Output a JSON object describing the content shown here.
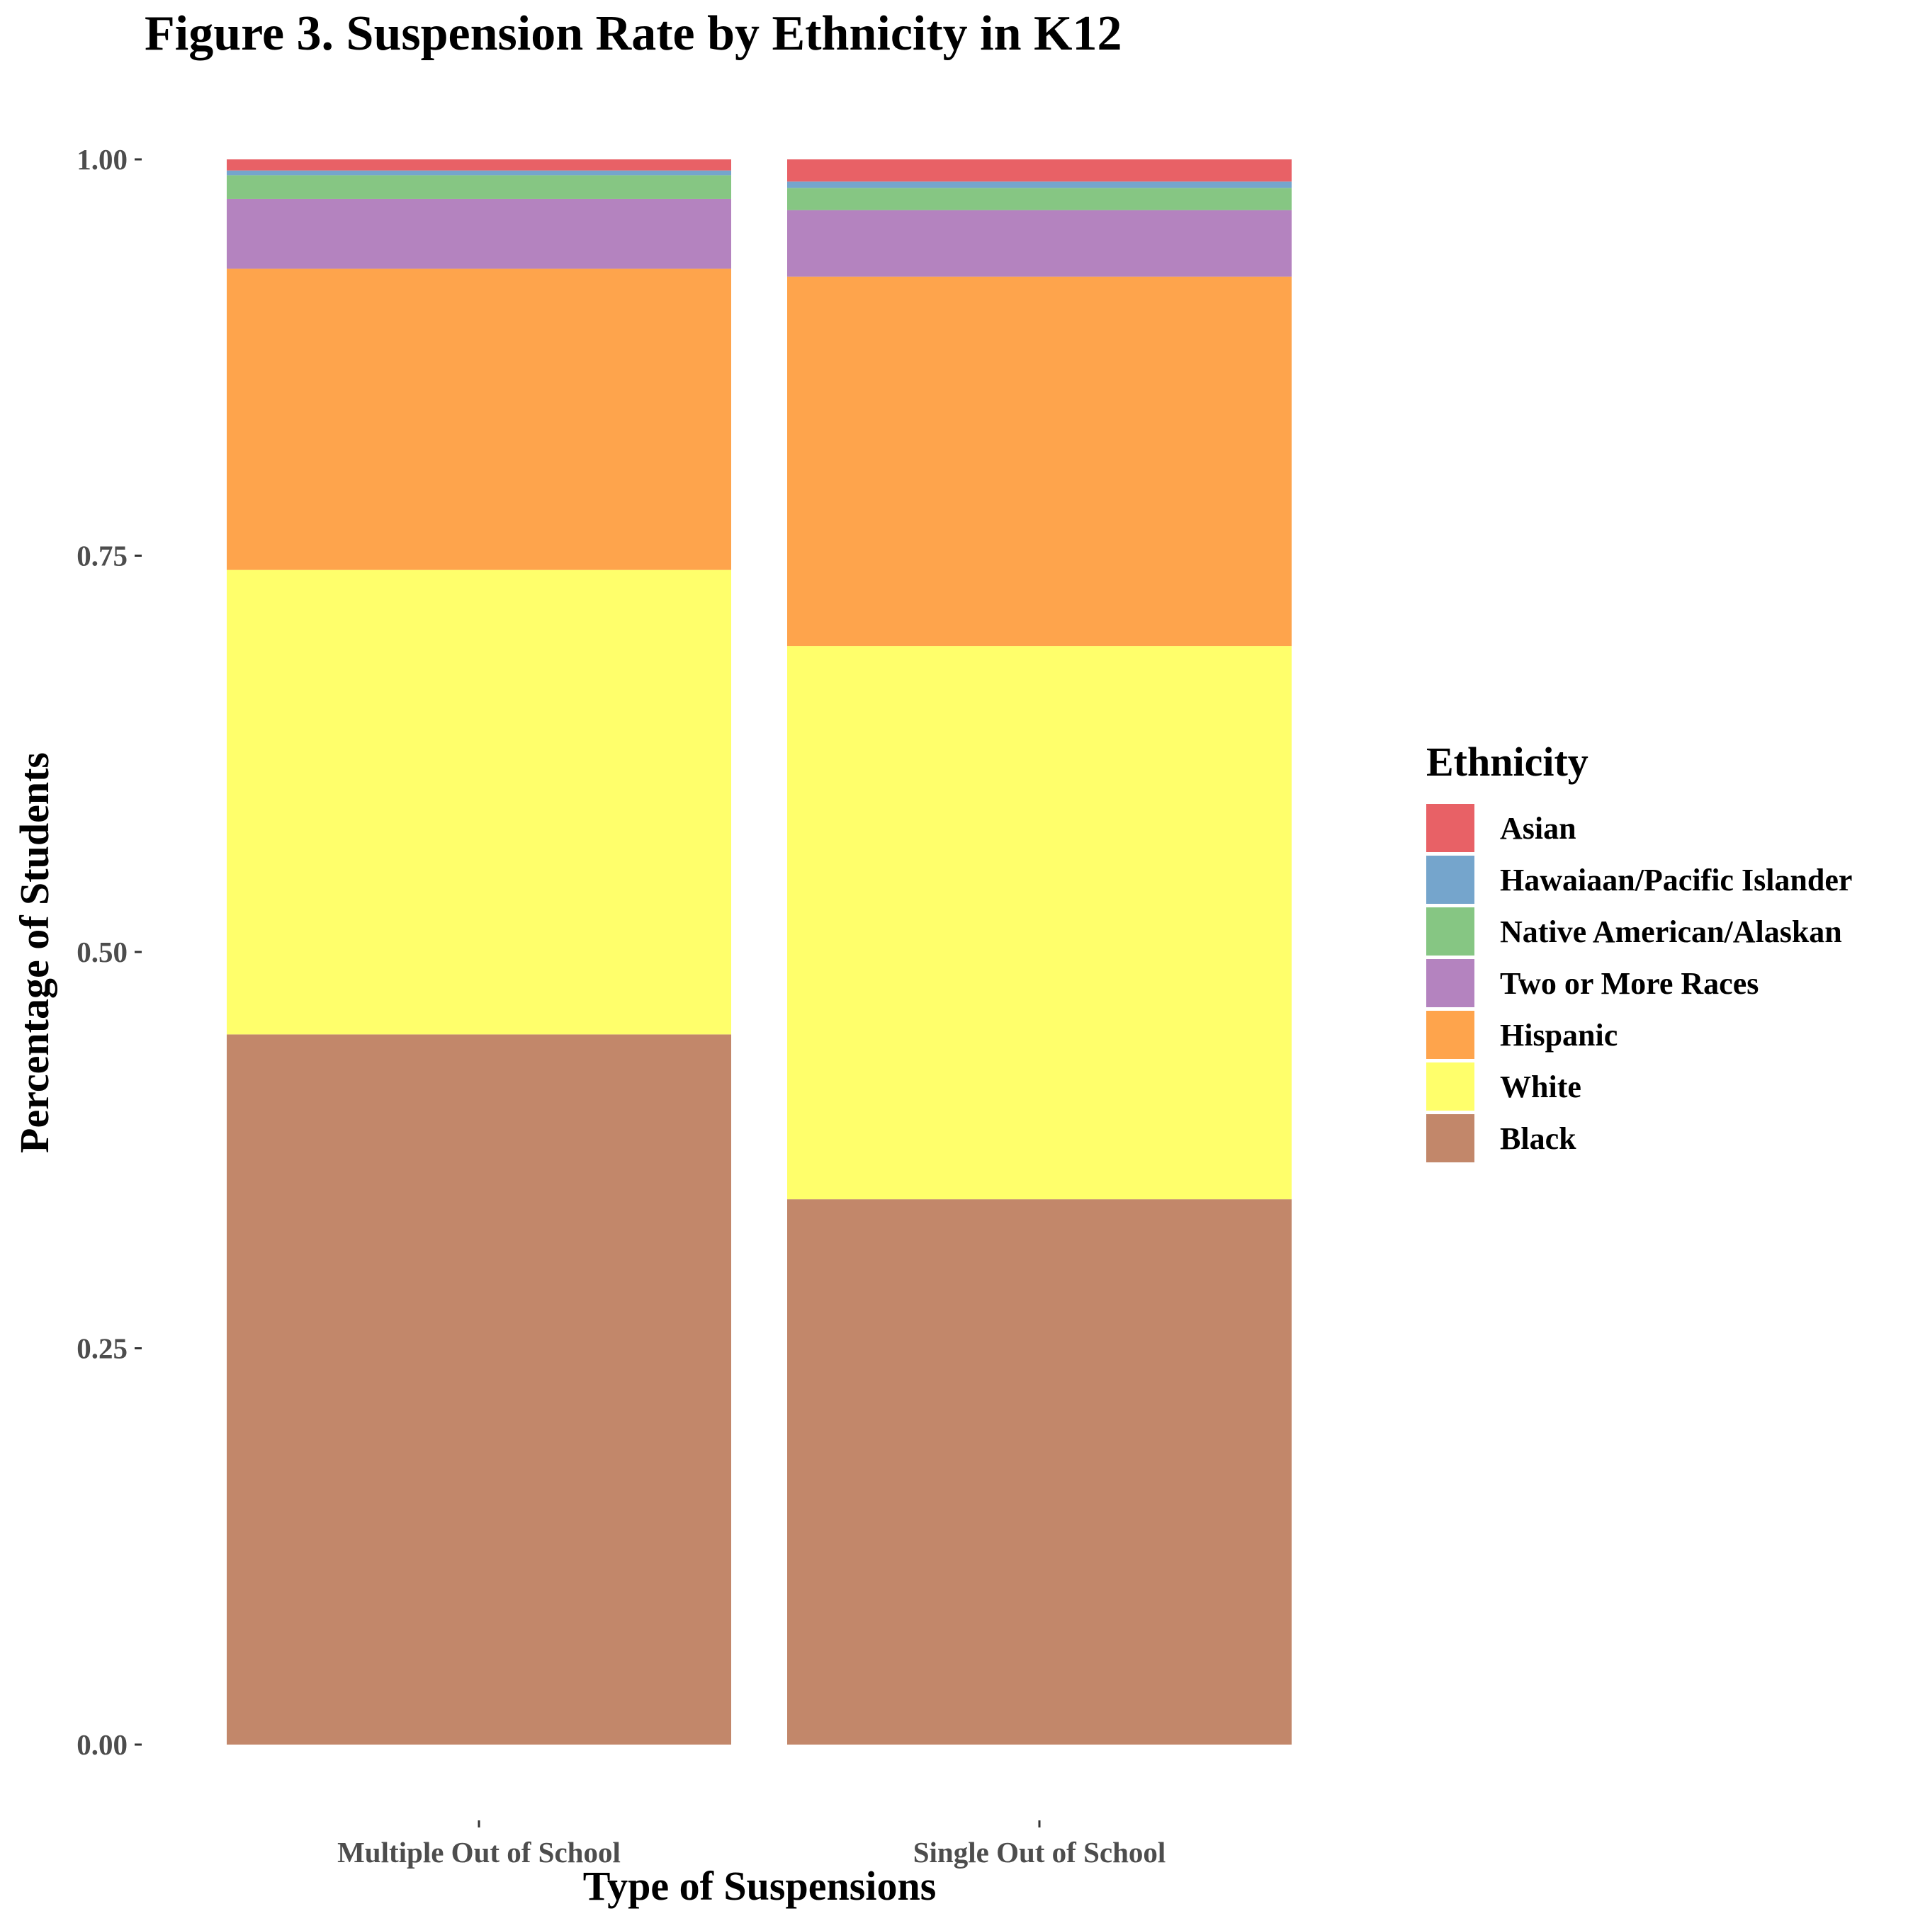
{
  "chart_data": {
    "type": "bar",
    "stacked": true,
    "title": "Figure 3. Suspension Rate by Ethnicity in K12",
    "xlabel": "Type of Suspensions",
    "ylabel": "Percentage of Students",
    "categories": [
      "Multiple Out of School",
      "Single Out of School"
    ],
    "ylim": [
      0,
      1
    ],
    "yticks": [
      "0.00",
      "0.25",
      "0.50",
      "0.75",
      "1.00"
    ],
    "ytick_values": [
      0,
      0.25,
      0.5,
      0.75,
      1.0
    ],
    "grid": false,
    "legend": {
      "title": "Ethnicity",
      "position": "right"
    },
    "series": [
      {
        "name": "Black",
        "color": "#c2876a",
        "values": [
          0.448,
          0.344
        ]
      },
      {
        "name": "White",
        "color": "#ffff6b",
        "values": [
          0.293,
          0.349
        ]
      },
      {
        "name": "Hispanic",
        "color": "#fea44c",
        "values": [
          0.19,
          0.233
        ]
      },
      {
        "name": "Two or More Races",
        "color": "#b483bf",
        "values": [
          0.044,
          0.042
        ]
      },
      {
        "name": "Native American/Alaskan",
        "color": "#86c683",
        "values": [
          0.015,
          0.014
        ]
      },
      {
        "name": "Hawaiaan/Pacific Islander",
        "color": "#75a5cc",
        "values": [
          0.003,
          0.004
        ]
      },
      {
        "name": "Asian",
        "color": "#e86166",
        "values": [
          0.007,
          0.014
        ]
      }
    ],
    "legend_order": [
      "Asian",
      "Hawaiaan/Pacific Islander",
      "Native American/Alaskan",
      "Two or More Races",
      "Hispanic",
      "White",
      "Black"
    ]
  }
}
